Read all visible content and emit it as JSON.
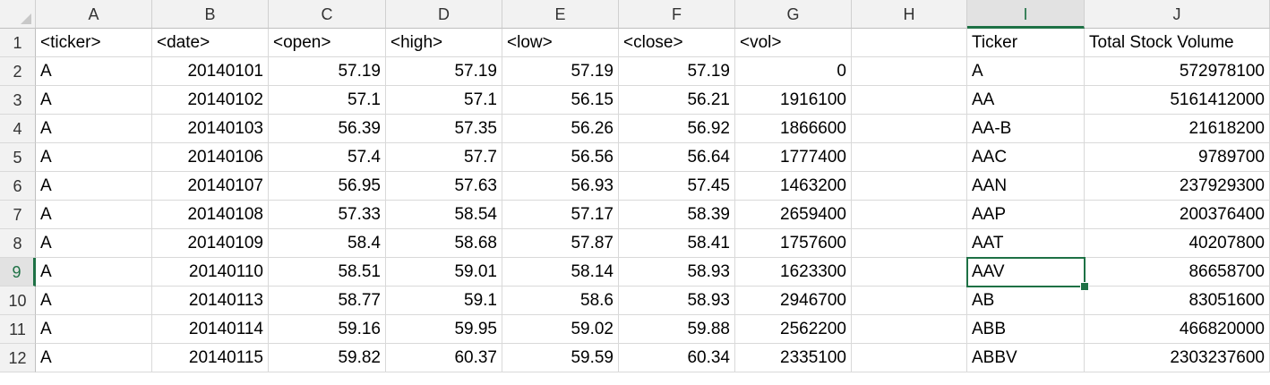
{
  "columns": [
    "A",
    "B",
    "C",
    "D",
    "E",
    "F",
    "G",
    "H",
    "I",
    "J"
  ],
  "active_cell": {
    "row": "9",
    "column": "I"
  },
  "rows": [
    {
      "num": "1",
      "A": "<ticker>",
      "B": "<date>",
      "C": "<open>",
      "D": "<high>",
      "E": "<low>",
      "F": "<close>",
      "G": "<vol>",
      "H": "",
      "I": "Ticker",
      "J": "Total Stock Volume"
    },
    {
      "num": "2",
      "A": "A",
      "B": "20140101",
      "C": "57.19",
      "D": "57.19",
      "E": "57.19",
      "F": "57.19",
      "G": "0",
      "H": "",
      "I": "A",
      "J": "572978100"
    },
    {
      "num": "3",
      "A": "A",
      "B": "20140102",
      "C": "57.1",
      "D": "57.1",
      "E": "56.15",
      "F": "56.21",
      "G": "1916100",
      "H": "",
      "I": "AA",
      "J": "5161412000"
    },
    {
      "num": "4",
      "A": "A",
      "B": "20140103",
      "C": "56.39",
      "D": "57.35",
      "E": "56.26",
      "F": "56.92",
      "G": "1866600",
      "H": "",
      "I": "AA-B",
      "J": "21618200"
    },
    {
      "num": "5",
      "A": "A",
      "B": "20140106",
      "C": "57.4",
      "D": "57.7",
      "E": "56.56",
      "F": "56.64",
      "G": "1777400",
      "H": "",
      "I": "AAC",
      "J": "9789700"
    },
    {
      "num": "6",
      "A": "A",
      "B": "20140107",
      "C": "56.95",
      "D": "57.63",
      "E": "56.93",
      "F": "57.45",
      "G": "1463200",
      "H": "",
      "I": "AAN",
      "J": "237929300"
    },
    {
      "num": "7",
      "A": "A",
      "B": "20140108",
      "C": "57.33",
      "D": "58.54",
      "E": "57.17",
      "F": "58.39",
      "G": "2659400",
      "H": "",
      "I": "AAP",
      "J": "200376400"
    },
    {
      "num": "8",
      "A": "A",
      "B": "20140109",
      "C": "58.4",
      "D": "58.68",
      "E": "57.87",
      "F": "58.41",
      "G": "1757600",
      "H": "",
      "I": "AAT",
      "J": "40207800"
    },
    {
      "num": "9",
      "A": "A",
      "B": "20140110",
      "C": "58.51",
      "D": "59.01",
      "E": "58.14",
      "F": "58.93",
      "G": "1623300",
      "H": "",
      "I": "AAV",
      "J": "86658700"
    },
    {
      "num": "10",
      "A": "A",
      "B": "20140113",
      "C": "58.77",
      "D": "59.1",
      "E": "58.6",
      "F": "58.93",
      "G": "2946700",
      "H": "",
      "I": "AB",
      "J": "83051600"
    },
    {
      "num": "11",
      "A": "A",
      "B": "20140114",
      "C": "59.16",
      "D": "59.95",
      "E": "59.02",
      "F": "59.88",
      "G": "2562200",
      "H": "",
      "I": "ABB",
      "J": "466820000"
    },
    {
      "num": "12",
      "A": "A",
      "B": "20140115",
      "C": "59.82",
      "D": "60.37",
      "E": "59.59",
      "F": "60.34",
      "G": "2335100",
      "H": "",
      "I": "ABBV",
      "J": "2303237600"
    }
  ]
}
